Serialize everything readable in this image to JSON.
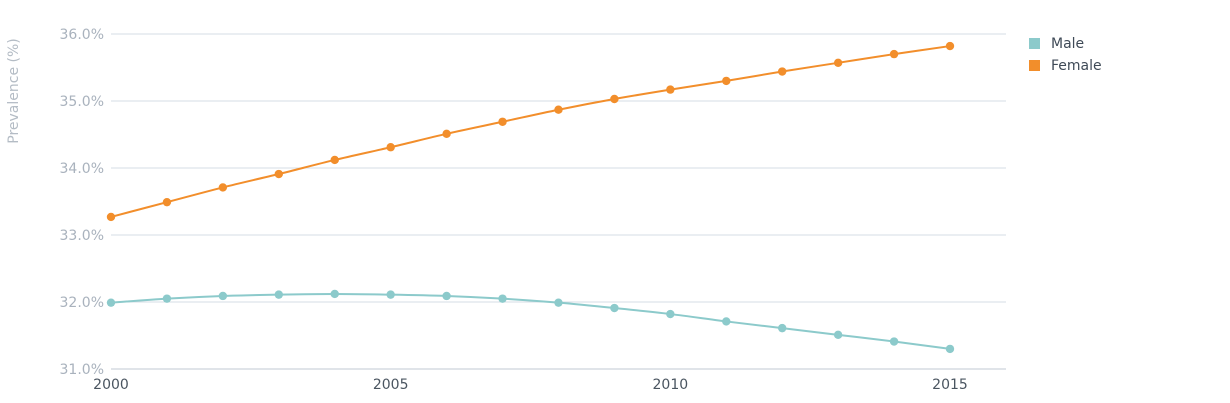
{
  "chart_data": {
    "type": "line",
    "ylabel": "Prevalence (%)",
    "xlabel": "",
    "ylim": [
      31.0,
      36.0
    ],
    "yticks": [
      31.0,
      32.0,
      33.0,
      34.0,
      35.0,
      36.0
    ],
    "ytick_labels": [
      "31.0%",
      "32.0%",
      "33.0%",
      "34.0%",
      "35.0%",
      "36.0%"
    ],
    "xlim": [
      2000,
      2016
    ],
    "xticks": [
      2000,
      2005,
      2010,
      2015
    ],
    "xtick_labels": [
      "2000",
      "2005",
      "2010",
      "2015"
    ],
    "grid": true,
    "legend_position": "top-right",
    "x": [
      2000,
      2001,
      2002,
      2003,
      2004,
      2005,
      2006,
      2007,
      2008,
      2009,
      2010,
      2011,
      2012,
      2013,
      2014,
      2015
    ],
    "series": [
      {
        "name": "Male",
        "color": "#8ccacb",
        "values": [
          31.99,
          32.05,
          32.09,
          32.11,
          32.12,
          32.11,
          32.09,
          32.05,
          31.99,
          31.91,
          31.82,
          31.71,
          31.61,
          31.51,
          31.41,
          31.3
        ]
      },
      {
        "name": "Female",
        "color": "#f28e2b",
        "values": [
          33.27,
          33.49,
          33.71,
          33.91,
          34.12,
          34.31,
          34.51,
          34.69,
          34.87,
          35.03,
          35.17,
          35.3,
          35.44,
          35.57,
          35.7,
          35.82
        ]
      }
    ]
  }
}
